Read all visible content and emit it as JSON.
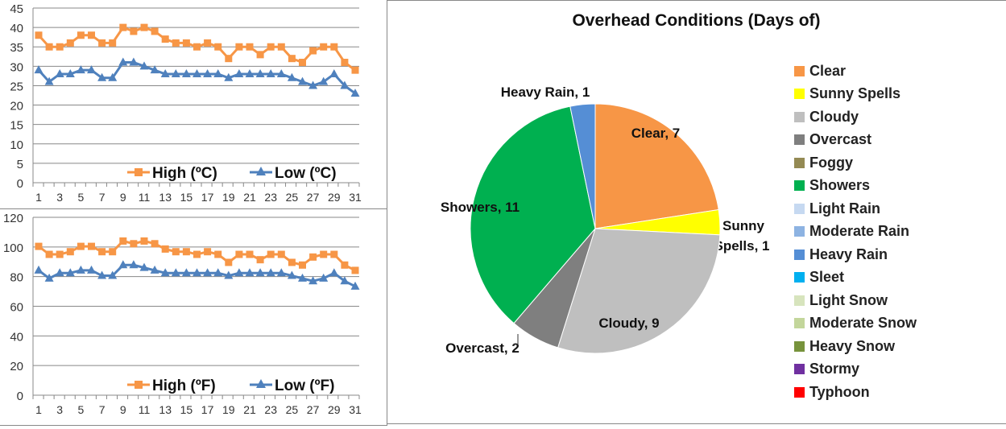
{
  "chart_data": [
    {
      "type": "line",
      "x": [
        1,
        2,
        3,
        4,
        5,
        6,
        7,
        8,
        9,
        10,
        11,
        12,
        13,
        14,
        15,
        16,
        17,
        18,
        19,
        20,
        21,
        22,
        23,
        24,
        25,
        26,
        27,
        28,
        29,
        30,
        31
      ],
      "x_tick_labels": [
        "1",
        "3",
        "5",
        "7",
        "9",
        "11",
        "13",
        "15",
        "17",
        "19",
        "21",
        "23",
        "25",
        "27",
        "29",
        "31"
      ],
      "ylim": [
        0,
        45
      ],
      "y_ticks": [
        0,
        5,
        10,
        15,
        20,
        25,
        30,
        35,
        40,
        45
      ],
      "grid": true,
      "legend": "bottom",
      "series": [
        {
          "name": "High (ºC)",
          "color": "#F79646",
          "marker": "square",
          "values": [
            38,
            35,
            35,
            36,
            38,
            38,
            36,
            36,
            40,
            39,
            40,
            39,
            37,
            36,
            36,
            35,
            36,
            35,
            32,
            35,
            35,
            33,
            35,
            35,
            32,
            31,
            34,
            35,
            35,
            31,
            29
          ]
        },
        {
          "name": "Low (ºC)",
          "color": "#4F81BD",
          "marker": "triangle",
          "values": [
            29,
            26,
            28,
            28,
            29,
            29,
            27,
            27,
            31,
            31,
            30,
            29,
            28,
            28,
            28,
            28,
            28,
            28,
            27,
            28,
            28,
            28,
            28,
            28,
            27,
            26,
            25,
            26,
            28,
            25,
            23
          ]
        }
      ]
    },
    {
      "type": "line",
      "x": [
        1,
        2,
        3,
        4,
        5,
        6,
        7,
        8,
        9,
        10,
        11,
        12,
        13,
        14,
        15,
        16,
        17,
        18,
        19,
        20,
        21,
        22,
        23,
        24,
        25,
        26,
        27,
        28,
        29,
        30,
        31
      ],
      "x_tick_labels": [
        "1",
        "3",
        "5",
        "7",
        "9",
        "11",
        "13",
        "15",
        "17",
        "19",
        "21",
        "23",
        "25",
        "27",
        "29",
        "31"
      ],
      "ylim": [
        0,
        120
      ],
      "y_ticks": [
        0,
        20,
        40,
        60,
        80,
        100,
        120
      ],
      "grid": true,
      "legend": "bottom",
      "series": [
        {
          "name": "High (ºF)",
          "color": "#F79646",
          "marker": "square",
          "values": [
            100.4,
            95,
            95,
            96.8,
            100.4,
            100.4,
            96.8,
            96.8,
            104,
            102.2,
            104,
            102.2,
            98.6,
            96.8,
            96.8,
            95,
            96.8,
            95,
            89.6,
            95,
            95,
            91.4,
            95,
            95,
            89.6,
            87.8,
            93.2,
            95,
            95,
            87.8,
            84.2
          ]
        },
        {
          "name": "Low (ºF)",
          "color": "#4F81BD",
          "marker": "triangle",
          "values": [
            84.2,
            78.8,
            82.4,
            82.4,
            84.2,
            84.2,
            80.6,
            80.6,
            87.8,
            87.8,
            86,
            84.2,
            82.4,
            82.4,
            82.4,
            82.4,
            82.4,
            82.4,
            80.6,
            82.4,
            82.4,
            82.4,
            82.4,
            82.4,
            80.6,
            78.8,
            77,
            78.8,
            82.4,
            77,
            73.4
          ]
        }
      ]
    },
    {
      "type": "pie",
      "title": "Overhead Conditions (Days of)",
      "legend": "right",
      "slices": [
        {
          "label": "Clear",
          "value": 7,
          "color": "#F79646",
          "data_label": "Clear, 7"
        },
        {
          "label": "Sunny Spells",
          "value": 1,
          "color": "#FFFF00",
          "data_label": "Sunny Spells, 1"
        },
        {
          "label": "Cloudy",
          "value": 9,
          "color": "#BFBFBF",
          "data_label": "Cloudy, 9"
        },
        {
          "label": "Overcast",
          "value": 2,
          "color": "#7F7F7F",
          "data_label": "Overcast, 2"
        },
        {
          "label": "Foggy",
          "value": 0,
          "color": "#948A54"
        },
        {
          "label": "Showers",
          "value": 11,
          "color": "#00B050",
          "data_label": "Showers, 11"
        },
        {
          "label": "Light Rain",
          "value": 0,
          "color": "#C6D9F1"
        },
        {
          "label": "Moderate Rain",
          "value": 0,
          "color": "#8DB3E2"
        },
        {
          "label": "Heavy Rain",
          "value": 1,
          "color": "#558ED5",
          "data_label": "Heavy Rain, 1"
        },
        {
          "label": "Sleet",
          "value": 0,
          "color": "#00B0F0"
        },
        {
          "label": "Light Snow",
          "value": 0,
          "color": "#D7E4BD"
        },
        {
          "label": "Moderate Snow",
          "value": 0,
          "color": "#C3D69B"
        },
        {
          "label": "Heavy Snow",
          "value": 0,
          "color": "#77933C"
        },
        {
          "label": "Stormy",
          "value": 0,
          "color": "#7030A0"
        },
        {
          "label": "Typhoon",
          "value": 0,
          "color": "#FF0000"
        }
      ]
    }
  ]
}
